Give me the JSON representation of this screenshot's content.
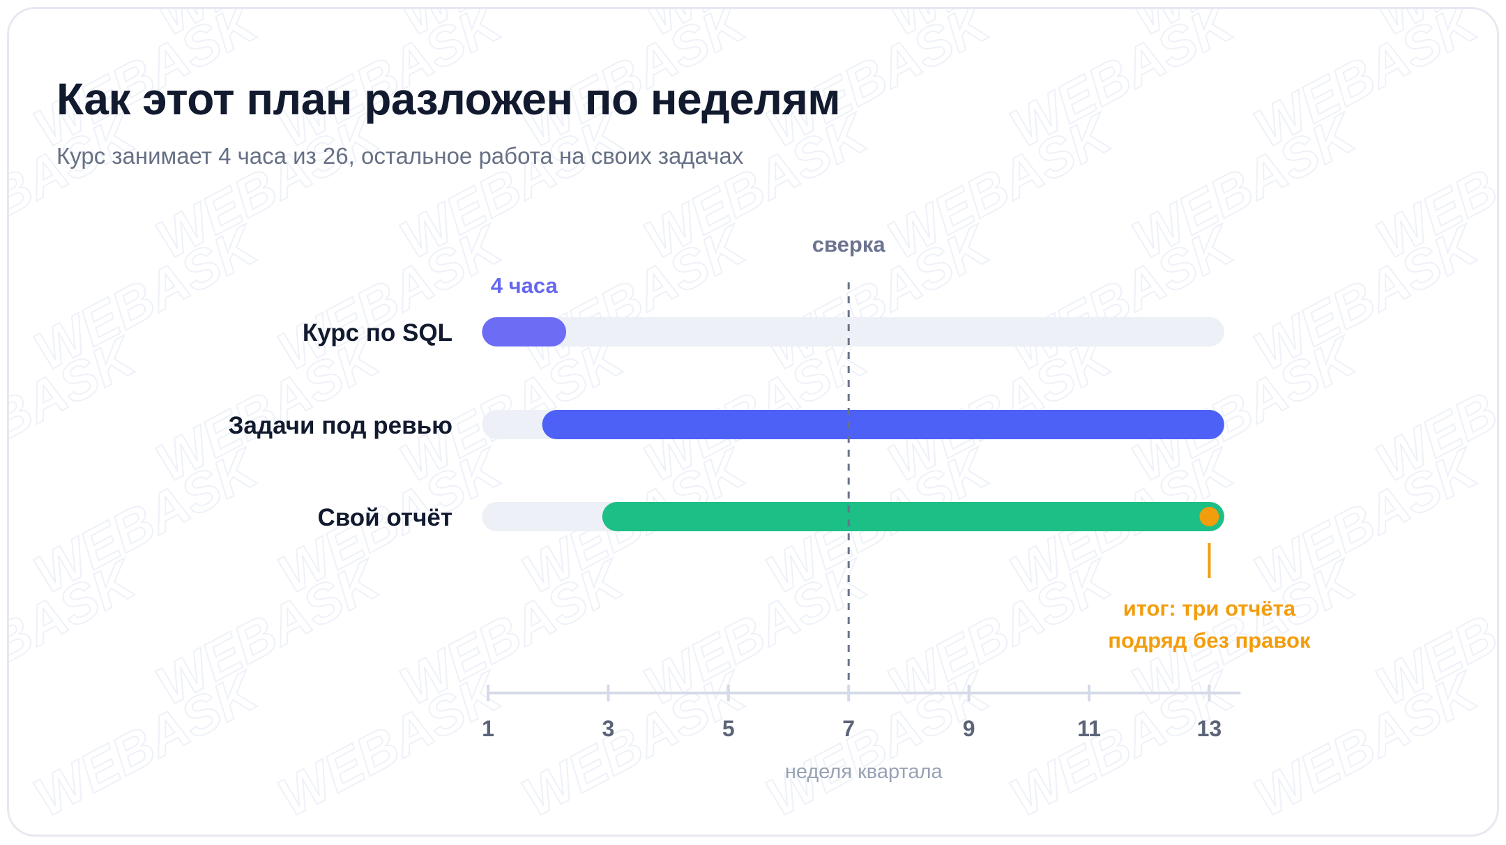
{
  "title": "Как этот план разложен по неделям",
  "subtitle": "Курс занимает 4 часа из 26, остальное работа на своих задачах",
  "watermark_text": "WEBASK",
  "chart_data": {
    "type": "gantt",
    "xlabel": "неделя квартала",
    "xlim": [
      1,
      13.5
    ],
    "ticks": [
      1,
      3,
      5,
      7,
      9,
      11,
      13
    ],
    "track_range": [
      0.9,
      13.25
    ],
    "rows": [
      {
        "label": "Курс по SQL",
        "start": 0.9,
        "end": 2.3,
        "color": "#6c6cf5",
        "bar_label": "4 часа"
      },
      {
        "label": "Задачи под ревью",
        "start": 1.9,
        "end": 13.25,
        "color": "#4d61f7",
        "bar_label": ""
      },
      {
        "label": "Свой отчёт",
        "start": 2.9,
        "end": 13.25,
        "color": "#1cbf86",
        "bar_label": ""
      }
    ],
    "vertical_marker": {
      "x": 7,
      "label": "сверка"
    },
    "milestone": {
      "row": 2,
      "x": 13,
      "label_lines": [
        "итог: три отчёта",
        "подряд без правок"
      ],
      "color": "#f29d0c"
    },
    "track_color": "#eef0f7",
    "axis_color": "#d5dae8"
  }
}
